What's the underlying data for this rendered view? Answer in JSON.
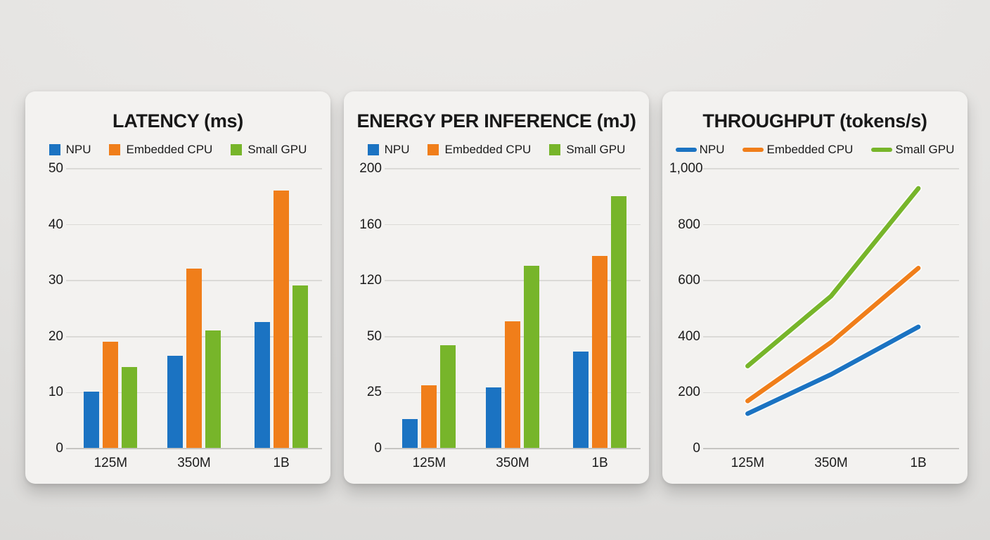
{
  "page": {
    "background_hex": "#e4e3e1",
    "card_background_hex": "#f3f2f0"
  },
  "colors": {
    "npu": "#1b73c2",
    "embedded_cpu": "#f07e1a",
    "small_gpu": "#77b52a",
    "gridline": "#dbdad7",
    "text": "#1b1b1b"
  },
  "chart_data": [
    {
      "type": "bar",
      "title": "LATENCY (ms)",
      "xlabel": "",
      "ylabel": "",
      "categories": [
        "125M",
        "350M",
        "1B"
      ],
      "yticks": [
        0,
        10,
        20,
        30,
        40,
        50
      ],
      "ytick_labels": [
        "0",
        "10",
        "20",
        "30",
        "40",
        "50"
      ],
      "ylim": [
        0,
        50
      ],
      "grid": true,
      "legend_position": "top",
      "series": [
        {
          "name": "NPU",
          "color": "#1b73c2",
          "values": [
            10,
            16.5,
            22.5
          ]
        },
        {
          "name": "Embedded CPU",
          "color": "#f07e1a",
          "values": [
            19,
            32,
            46
          ]
        },
        {
          "name": "Small GPU",
          "color": "#77b52a",
          "values": [
            14.5,
            21,
            29
          ]
        }
      ]
    },
    {
      "type": "bar",
      "title": "ENERGY PER INFERENCE (mJ)",
      "xlabel": "",
      "ylabel": "",
      "categories": [
        "125M",
        "350M",
        "1B"
      ],
      "yticks": [
        0,
        25,
        50,
        120,
        160,
        200
      ],
      "ytick_labels": [
        "0",
        "25",
        "50",
        "120",
        "160",
        "200"
      ],
      "ylim": [
        0,
        200
      ],
      "grid": true,
      "legend_position": "top",
      "series": [
        {
          "name": "NPU",
          "color": "#1b73c2",
          "values": [
            13,
            27,
            43
          ]
        },
        {
          "name": "Embedded CPU",
          "color": "#f07e1a",
          "values": [
            28,
            68,
            137
          ]
        },
        {
          "name": "Small GPU",
          "color": "#77b52a",
          "values": [
            46,
            130,
            180
          ]
        }
      ]
    },
    {
      "type": "line",
      "title": "THROUGHPUT (tokens/s)",
      "xlabel": "",
      "ylabel": "",
      "categories": [
        "125M",
        "350M",
        "1B"
      ],
      "yticks": [
        0,
        200,
        400,
        600,
        800,
        1000
      ],
      "ytick_labels": [
        "0",
        "200",
        "400",
        "600",
        "800",
        "1,000"
      ],
      "ylim": [
        0,
        1000
      ],
      "grid": true,
      "legend_position": "top",
      "series": [
        {
          "name": "NPU",
          "color": "#1b73c2",
          "values": [
            125,
            265,
            435
          ]
        },
        {
          "name": "Embedded CPU",
          "color": "#f07e1a",
          "values": [
            170,
            380,
            645
          ]
        },
        {
          "name": "Small GPU",
          "color": "#77b52a",
          "values": [
            295,
            545,
            930
          ]
        }
      ]
    }
  ]
}
